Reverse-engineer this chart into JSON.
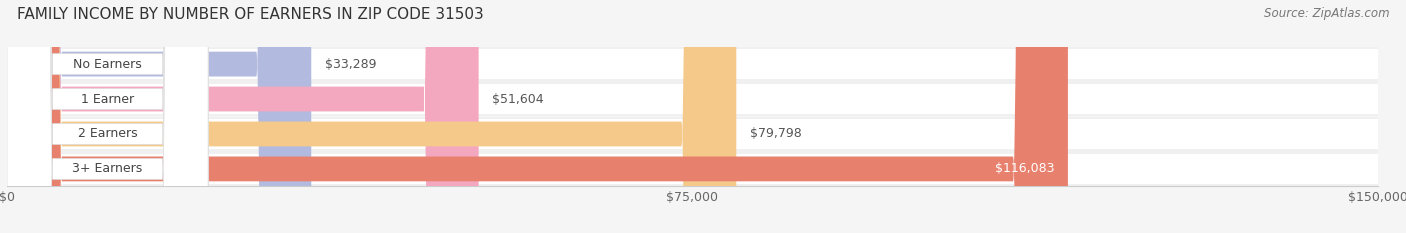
{
  "title": "FAMILY INCOME BY NUMBER OF EARNERS IN ZIP CODE 31503",
  "source": "Source: ZipAtlas.com",
  "categories": [
    "No Earners",
    "1 Earner",
    "2 Earners",
    "3+ Earners"
  ],
  "values": [
    33289,
    51604,
    79798,
    116083
  ],
  "labels": [
    "$33,289",
    "$51,604",
    "$79,798",
    "$116,083"
  ],
  "bar_colors": [
    "#b3badf",
    "#f4a8c0",
    "#f5c98a",
    "#e8806e"
  ],
  "label_inside": [
    false,
    false,
    false,
    true
  ],
  "xlim": [
    0,
    150000
  ],
  "xticks": [
    0,
    75000,
    150000
  ],
  "xticklabels": [
    "$0",
    "$75,000",
    "$150,000"
  ],
  "title_fontsize": 11,
  "source_fontsize": 8.5,
  "label_fontsize": 9,
  "cat_fontsize": 9,
  "background_color": "#f5f5f5",
  "row_bg_color": "#efefef",
  "row_highlight_color": "#ffffff"
}
